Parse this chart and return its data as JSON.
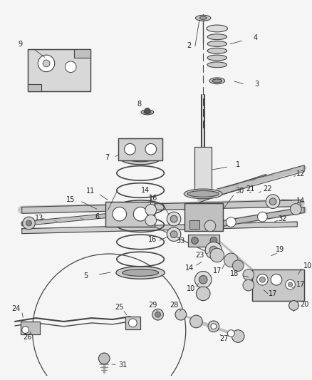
{
  "background_color": "#f5f5f5",
  "figsize": [
    4.38,
    5.33
  ],
  "dpi": 100,
  "line_color": "#444444",
  "label_color": "#222222",
  "label_fontsize": 7.0
}
